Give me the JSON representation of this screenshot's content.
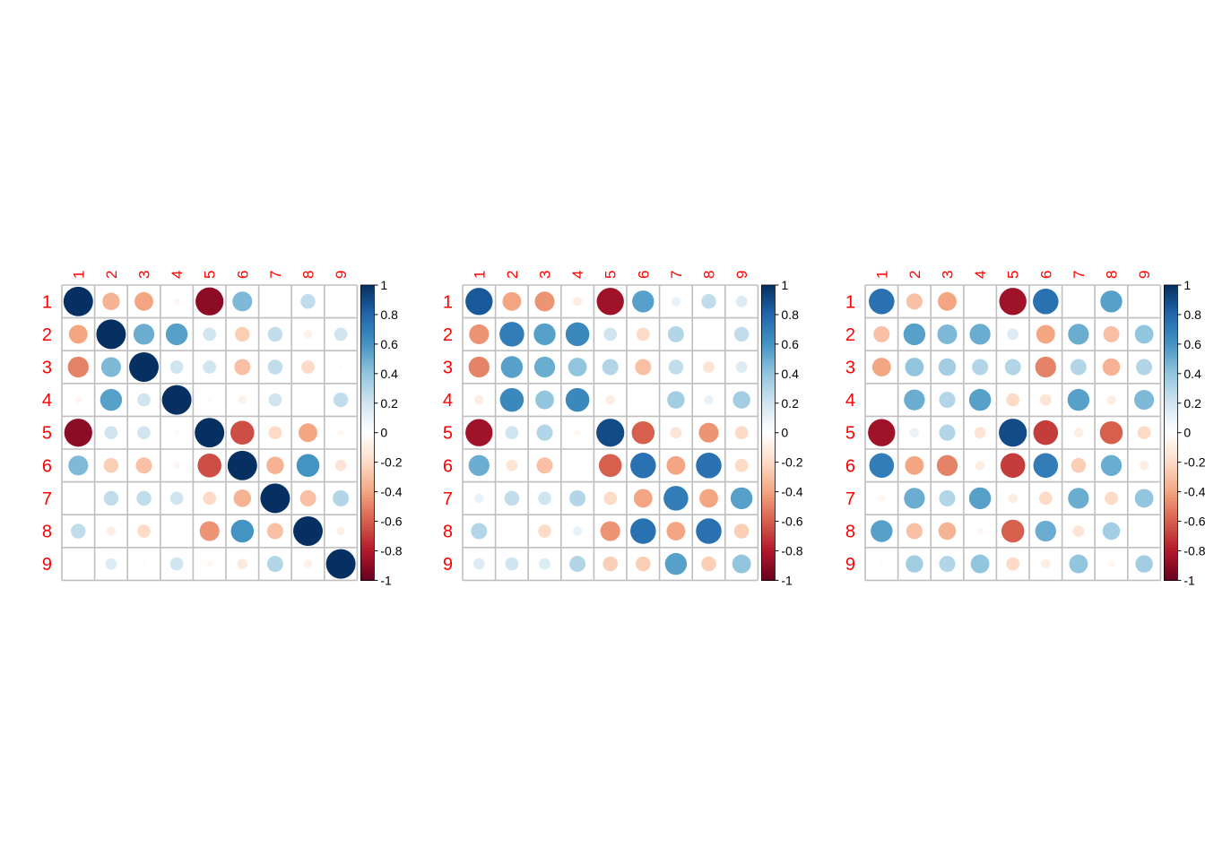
{
  "chart_data": [
    {
      "type": "heatmap",
      "labels": [
        "1",
        "2",
        "3",
        "4",
        "5",
        "6",
        "7",
        "8",
        "9"
      ],
      "matrix": [
        [
          1.0,
          -0.35,
          -0.4,
          -0.05,
          -0.9,
          0.45,
          0.0,
          0.25,
          0.0
        ],
        [
          -0.4,
          1.0,
          0.5,
          0.55,
          0.2,
          -0.25,
          0.25,
          -0.08,
          0.2
        ],
        [
          -0.5,
          0.45,
          1.0,
          0.2,
          0.2,
          -0.3,
          0.25,
          -0.2,
          0.02
        ],
        [
          -0.05,
          0.55,
          0.2,
          1.0,
          -0.03,
          -0.08,
          0.2,
          0.0,
          0.25
        ],
        [
          -0.9,
          0.2,
          0.2,
          -0.03,
          1.0,
          -0.65,
          -0.2,
          -0.4,
          -0.05
        ],
        [
          0.45,
          -0.25,
          -0.3,
          -0.05,
          -0.65,
          1.0,
          -0.35,
          0.6,
          -0.15
        ],
        [
          0.0,
          0.25,
          0.25,
          0.2,
          -0.2,
          -0.35,
          1.0,
          -0.3,
          0.3
        ],
        [
          0.25,
          -0.1,
          -0.2,
          0.0,
          -0.45,
          0.6,
          -0.3,
          1.0,
          -0.08
        ],
        [
          0.0,
          0.15,
          0.02,
          0.2,
          -0.05,
          -0.12,
          0.3,
          -0.08,
          1.0
        ]
      ]
    },
    {
      "type": "heatmap",
      "labels": [
        "1",
        "2",
        "3",
        "4",
        "5",
        "6",
        "7",
        "8",
        "9"
      ],
      "matrix": [
        [
          0.85,
          -0.4,
          -0.45,
          -0.1,
          -0.85,
          0.55,
          0.1,
          0.25,
          0.15
        ],
        [
          -0.45,
          0.7,
          0.55,
          0.65,
          0.2,
          -0.2,
          0.3,
          0.0,
          0.25
        ],
        [
          -0.5,
          0.55,
          0.5,
          0.4,
          0.3,
          -0.3,
          0.25,
          -0.15,
          0.15
        ],
        [
          -0.1,
          0.65,
          0.4,
          0.65,
          -0.1,
          0.0,
          0.35,
          0.1,
          0.35
        ],
        [
          -0.85,
          0.2,
          0.3,
          -0.05,
          0.9,
          -0.6,
          -0.15,
          -0.45,
          -0.2
        ],
        [
          0.5,
          -0.15,
          -0.3,
          0.0,
          -0.6,
          0.75,
          -0.4,
          0.75,
          -0.2
        ],
        [
          0.1,
          0.25,
          0.2,
          0.3,
          -0.2,
          -0.4,
          0.7,
          -0.4,
          0.55
        ],
        [
          0.3,
          0.0,
          -0.2,
          0.1,
          -0.45,
          0.75,
          -0.4,
          0.75,
          -0.25
        ],
        [
          0.15,
          0.2,
          0.15,
          0.3,
          -0.25,
          -0.25,
          0.55,
          -0.25,
          0.4
        ]
      ]
    },
    {
      "type": "heatmap",
      "labels": [
        "1",
        "2",
        "3",
        "4",
        "5",
        "6",
        "7",
        "8",
        "9"
      ],
      "matrix": [
        [
          0.75,
          -0.3,
          -0.4,
          0.0,
          -0.85,
          0.75,
          0.02,
          0.55,
          0.02
        ],
        [
          -0.3,
          0.55,
          0.45,
          0.5,
          0.15,
          -0.4,
          0.5,
          -0.3,
          0.4
        ],
        [
          -0.4,
          0.4,
          0.35,
          0.3,
          0.3,
          -0.5,
          0.3,
          -0.35,
          0.3
        ],
        [
          0.0,
          0.5,
          0.3,
          0.55,
          -0.2,
          -0.15,
          0.55,
          -0.1,
          0.45
        ],
        [
          -0.85,
          0.1,
          0.3,
          -0.15,
          0.9,
          -0.7,
          -0.1,
          -0.6,
          -0.2
        ],
        [
          0.7,
          -0.4,
          -0.5,
          -0.1,
          -0.7,
          0.7,
          -0.25,
          0.5,
          -0.1
        ],
        [
          -0.05,
          0.5,
          0.3,
          0.55,
          -0.1,
          -0.2,
          0.5,
          -0.2,
          0.4
        ],
        [
          0.55,
          -0.3,
          -0.35,
          -0.05,
          -0.6,
          0.5,
          -0.15,
          0.35,
          0.02
        ],
        [
          0.02,
          0.35,
          0.3,
          0.4,
          -0.2,
          -0.1,
          0.4,
          -0.05,
          0.35
        ]
      ]
    }
  ],
  "colorbar": {
    "ticks": [
      "1",
      "0.8",
      "0.6",
      "0.4",
      "0.2",
      "0",
      "-0.2",
      "-0.4",
      "-0.6",
      "-0.8",
      "-1"
    ],
    "range": [
      -1,
      1
    ]
  },
  "colors": {
    "label": "#ff0000",
    "grid": "#bfbfbf",
    "scale": [
      "#67001f",
      "#b2182b",
      "#d6604d",
      "#f4a582",
      "#fddbc7",
      "#ffffff",
      "#d1e5f0",
      "#92c5de",
      "#4393c3",
      "#2166ac",
      "#053061"
    ]
  }
}
